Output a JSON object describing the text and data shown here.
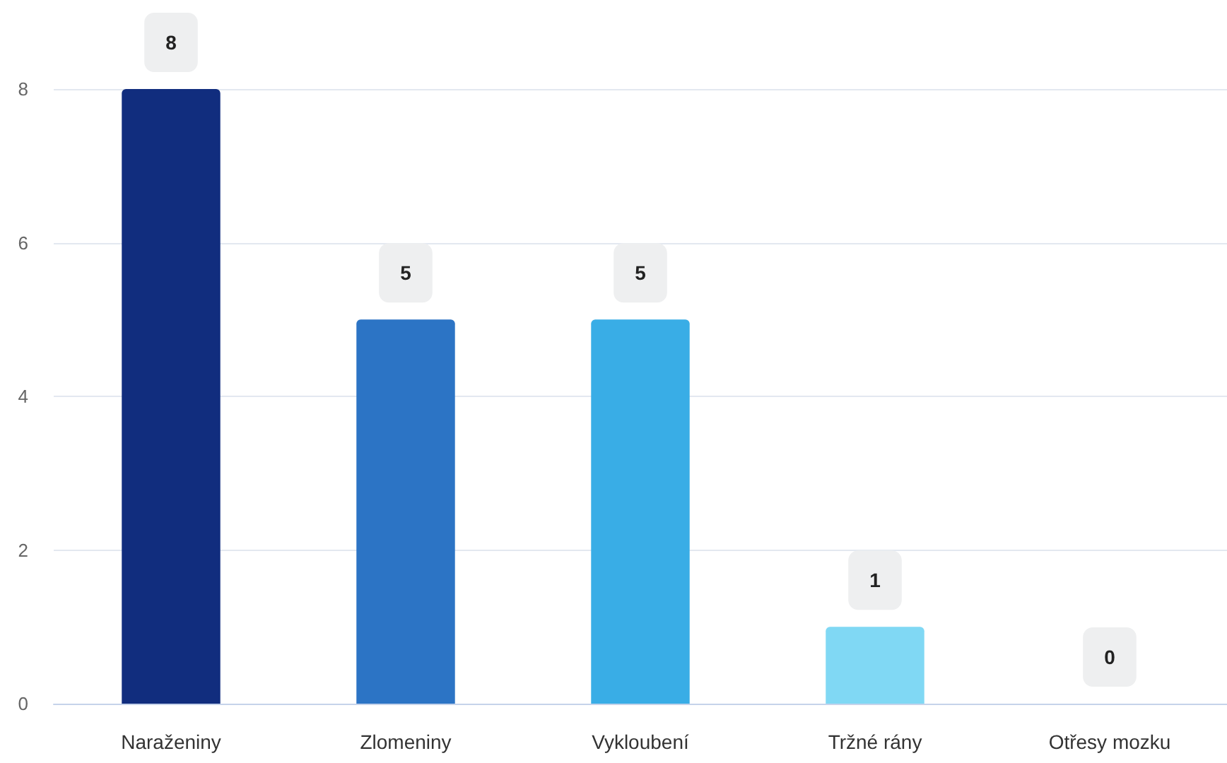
{
  "chart_data": {
    "type": "bar",
    "categories": [
      "Naraženiny",
      "Zlomeniny",
      "Vykloubení",
      "Tržné rány",
      "Otřesy mozku"
    ],
    "values": [
      8,
      5,
      5,
      1,
      0
    ],
    "colors": [
      "#112d7e",
      "#2c74c5",
      "#39ade6",
      "#80d8f4",
      "#b6e8f8"
    ],
    "ylim": [
      0,
      8
    ],
    "yticks": [
      0,
      2,
      4,
      6,
      8
    ],
    "grid": "y",
    "data_labels": true
  }
}
